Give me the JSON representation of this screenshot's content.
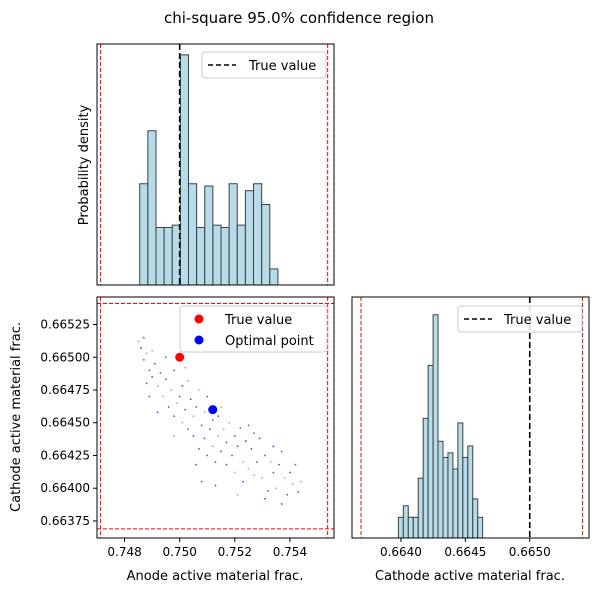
{
  "title": "chi-square 95.0% confidence region",
  "chart_data": [
    {
      "panel": "top-left",
      "type": "histogram",
      "ylabel": "Probability density",
      "xlim": [
        0.747,
        0.7556
      ],
      "bin_start": 0.74855,
      "bin_width": 0.000295,
      "counts": [
        0.44,
        0.67,
        0.25,
        0.25,
        0.26,
        1.0,
        0.44,
        0.25,
        0.43,
        0.26,
        0.25,
        0.44,
        0.26,
        0.41,
        0.44,
        0.35,
        0.07
      ],
      "true_value": 0.75,
      "bounds": [
        0.74713,
        0.75537
      ],
      "legend": {
        "true_value": "True value"
      },
      "legend_position": "upper right",
      "colors": {
        "bar_fill": "#add8e6",
        "bar_edge": "#3f3f3f",
        "true_line": "#000000",
        "bounds": "#ff0000"
      }
    },
    {
      "panel": "bottom-left",
      "type": "scatter",
      "xlabel": "Anode active material frac.",
      "ylabel": "Cathode active material frac.",
      "xlim": [
        0.747,
        0.7556
      ],
      "ylim": [
        0.66362,
        0.66546
      ],
      "x_ticks": [
        "0.748",
        "0.750",
        "0.752",
        "0.754"
      ],
      "x_tick_values": [
        0.748,
        0.75,
        0.752,
        0.754
      ],
      "y_ticks": [
        "0.66375",
        "0.66400",
        "0.66425",
        "0.66450",
        "0.66475",
        "0.66500",
        "0.66525"
      ],
      "y_tick_values": [
        0.66375,
        0.664,
        0.66425,
        0.6645,
        0.66475,
        0.665,
        0.66525
      ],
      "samples": [
        [
          0.7485,
          0.66512
        ],
        [
          0.7486,
          0.66507
        ],
        [
          0.7487,
          0.66498
        ],
        [
          0.7488,
          0.66503
        ],
        [
          0.7489,
          0.6649
        ],
        [
          0.7488,
          0.6648
        ],
        [
          0.749,
          0.66505
        ],
        [
          0.7491,
          0.66495
        ],
        [
          0.749,
          0.66485
        ],
        [
          0.7492,
          0.66478
        ],
        [
          0.7493,
          0.66488
        ],
        [
          0.7489,
          0.6647
        ],
        [
          0.7494,
          0.6647
        ],
        [
          0.7495,
          0.66483
        ],
        [
          0.7496,
          0.66462
        ],
        [
          0.7497,
          0.66475
        ],
        [
          0.7498,
          0.6649
        ],
        [
          0.7498,
          0.66455
        ],
        [
          0.7499,
          0.66465
        ],
        [
          0.75,
          0.6647
        ],
        [
          0.7501,
          0.66478
        ],
        [
          0.7501,
          0.6645
        ],
        [
          0.7502,
          0.6646
        ],
        [
          0.7503,
          0.66445
        ],
        [
          0.7503,
          0.66482
        ],
        [
          0.7504,
          0.66468
        ],
        [
          0.7505,
          0.6644
        ],
        [
          0.7505,
          0.66455
        ],
        [
          0.7506,
          0.66462
        ],
        [
          0.7507,
          0.6643
        ],
        [
          0.7507,
          0.66475
        ],
        [
          0.7508,
          0.66448
        ],
        [
          0.7509,
          0.66438
        ],
        [
          0.7509,
          0.66458
        ],
        [
          0.751,
          0.66425
        ],
        [
          0.7511,
          0.66445
        ],
        [
          0.7512,
          0.66432
        ],
        [
          0.7512,
          0.66452
        ],
        [
          0.7513,
          0.6642
        ],
        [
          0.7514,
          0.6644
        ],
        [
          0.7514,
          0.66455
        ],
        [
          0.7515,
          0.66428
        ],
        [
          0.7516,
          0.66445
        ],
        [
          0.7517,
          0.66418
        ],
        [
          0.7517,
          0.66435
        ],
        [
          0.7518,
          0.6645
        ],
        [
          0.7519,
          0.66425
        ],
        [
          0.752,
          0.6644
        ],
        [
          0.752,
          0.66412
        ],
        [
          0.7521,
          0.66432
        ],
        [
          0.7522,
          0.66446
        ],
        [
          0.7523,
          0.6642
        ],
        [
          0.7523,
          0.66405
        ],
        [
          0.7524,
          0.66436
        ],
        [
          0.7525,
          0.66415
        ],
        [
          0.7526,
          0.6643
        ],
        [
          0.7527,
          0.66442
        ],
        [
          0.7527,
          0.6641
        ],
        [
          0.7528,
          0.6642
        ],
        [
          0.7529,
          0.66438
        ],
        [
          0.753,
          0.66408
        ],
        [
          0.7531,
          0.66425
        ],
        [
          0.7532,
          0.66398
        ],
        [
          0.7533,
          0.6642
        ],
        [
          0.7534,
          0.66432
        ],
        [
          0.7534,
          0.66412
        ],
        [
          0.7535,
          0.664
        ],
        [
          0.7536,
          0.66418
        ],
        [
          0.7537,
          0.66428
        ],
        [
          0.7538,
          0.66408
        ],
        [
          0.7539,
          0.66395
        ],
        [
          0.754,
          0.66412
        ],
        [
          0.7541,
          0.66403
        ],
        [
          0.7542,
          0.66418
        ],
        [
          0.7543,
          0.66397
        ],
        [
          0.7544,
          0.66405
        ],
        [
          0.7537,
          0.66388
        ],
        [
          0.7531,
          0.66392
        ],
        [
          0.7502,
          0.66492
        ],
        [
          0.7495,
          0.665
        ],
        [
          0.751,
          0.6647
        ],
        [
          0.7515,
          0.66462
        ],
        [
          0.7525,
          0.66448
        ],
        [
          0.7508,
          0.66405
        ],
        [
          0.7498,
          0.6644
        ],
        [
          0.7492,
          0.66458
        ],
        [
          0.7513,
          0.66402
        ],
        [
          0.7521,
          0.66395
        ],
        [
          0.7487,
          0.66515
        ],
        [
          0.7506,
          0.66418
        ]
      ],
      "true_point": [
        0.75,
        0.665
      ],
      "optimal_point": [
        0.7512,
        0.6646
      ],
      "bounds_x": [
        0.74713,
        0.75537
      ],
      "bounds_y": [
        0.66369,
        0.66541
      ],
      "legend": {
        "true_value": "True value",
        "optimal_point": "Optimal point"
      },
      "legend_position": "upper right",
      "colors": {
        "samples": "#3a5fcd",
        "true_point": "#ff0000",
        "optimal_point": "#0000ff",
        "bounds": "#ff0000"
      }
    },
    {
      "panel": "bottom-right",
      "type": "histogram",
      "xlabel": "Cathode active material frac.",
      "xlim": [
        0.66362,
        0.66546
      ],
      "x_ticks": [
        "0.6640",
        "0.6645",
        "0.6650"
      ],
      "x_tick_values": [
        0.664,
        0.6645,
        0.665
      ],
      "bin_start": 0.66398,
      "bin_width": 3.85e-05,
      "counts": [
        0.09,
        0.14,
        0.09,
        0.09,
        0.26,
        0.52,
        0.75,
        0.97,
        0.42,
        0.35,
        0.37,
        0.3,
        0.5,
        0.35,
        0.4,
        0.17,
        0.09
      ],
      "true_value": 0.665,
      "bounds": [
        0.66369,
        0.66541
      ],
      "legend": {
        "true_value": "True value"
      },
      "legend_position": "upper right",
      "colors": {
        "bar_fill": "#add8e6",
        "bar_edge": "#3f3f3f",
        "true_line": "#000000",
        "bounds": "#ff0000"
      }
    }
  ]
}
